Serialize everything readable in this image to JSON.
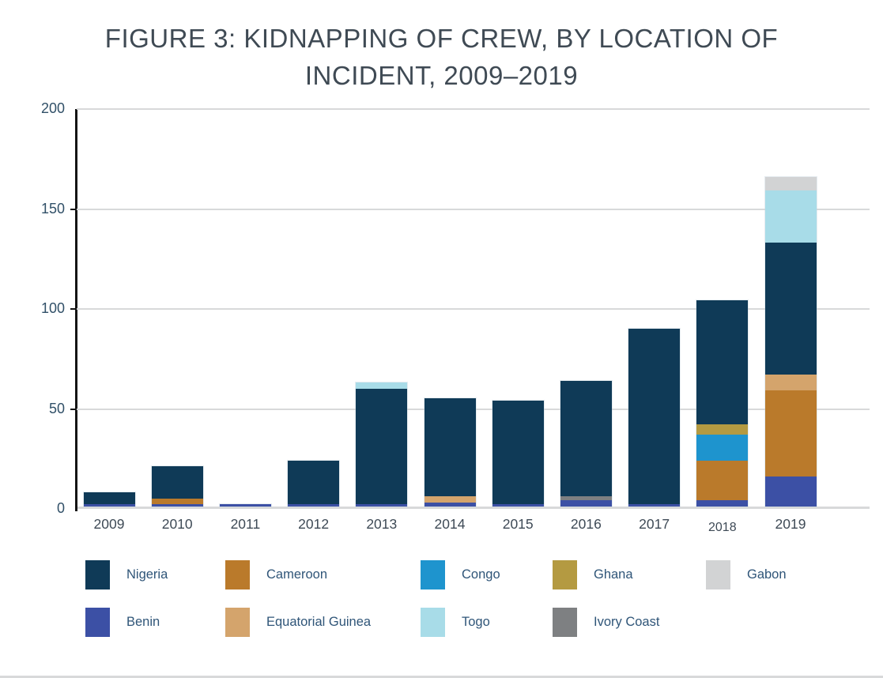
{
  "title": {
    "line1": "FIGURE 3: KIDNAPPING OF CREW, BY LOCATION OF",
    "line2": "INCIDENT, 2009–2019"
  },
  "chart_data": {
    "type": "bar",
    "stacked": true,
    "title": "FIGURE 3: KIDNAPPING OF CREW, BY LOCATION OF INCIDENT, 2009–2019",
    "categories": [
      "2009",
      "2010",
      "2011",
      "2012",
      "2013",
      "2014",
      "2015",
      "2016",
      "2017",
      "2018",
      "2019"
    ],
    "yticks": [
      0,
      50,
      100,
      150,
      200
    ],
    "ylim": [
      0,
      200
    ],
    "xlabel": "",
    "ylabel": "",
    "grid": true,
    "legend_position": "bottom",
    "stack_order": [
      "Benin",
      "Cameroon",
      "Congo",
      "Equatorial Guinea",
      "Ghana",
      "Ivory Coast",
      "Nigeria",
      "Togo",
      "Gabon"
    ],
    "series": [
      {
        "name": "Nigeria",
        "color": "#0F3A57",
        "values": [
          6,
          16,
          0,
          22,
          58,
          49,
          52,
          58,
          88,
          62,
          66
        ]
      },
      {
        "name": "Cameroon",
        "color": "#BA7A2B",
        "values": [
          0,
          3,
          0,
          0,
          0,
          0,
          0,
          0,
          0,
          20,
          43
        ]
      },
      {
        "name": "Congo",
        "color": "#1E94CE",
        "values": [
          0,
          0,
          0,
          0,
          0,
          0,
          0,
          0,
          0,
          13,
          0
        ]
      },
      {
        "name": "Ghana",
        "color": "#B49A41",
        "values": [
          0,
          0,
          0,
          0,
          0,
          0,
          0,
          0,
          0,
          5,
          0
        ]
      },
      {
        "name": "Gabon",
        "color": "#D2D3D4",
        "values": [
          0,
          0,
          0,
          0,
          0,
          0,
          0,
          0,
          0,
          0,
          7
        ]
      },
      {
        "name": "Benin",
        "color": "#3C50A5",
        "values": [
          1,
          1,
          1,
          1,
          1,
          2,
          1,
          3,
          1,
          3,
          15
        ]
      },
      {
        "name": "Equatorial Guinea",
        "color": "#D4A46C",
        "values": [
          0,
          0,
          0,
          0,
          0,
          3,
          0,
          0,
          0,
          0,
          8
        ]
      },
      {
        "name": "Togo",
        "color": "#A8DCE8",
        "values": [
          0,
          0,
          0,
          0,
          3,
          0,
          0,
          0,
          0,
          0,
          26
        ]
      },
      {
        "name": "Ivory Coast",
        "color": "#7E8082",
        "values": [
          0,
          0,
          0,
          0,
          0,
          0,
          0,
          2,
          0,
          0,
          0
        ]
      }
    ],
    "legend_rows": [
      [
        "Nigeria",
        "Cameroon",
        "Congo",
        "Ghana",
        "Gabon"
      ],
      [
        "Benin",
        "Equatorial Guinea",
        "Togo",
        "Ivory Coast"
      ]
    ]
  }
}
